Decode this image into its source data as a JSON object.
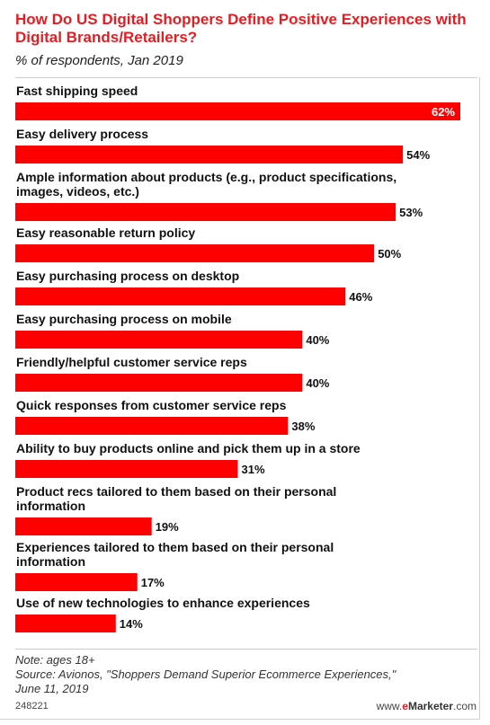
{
  "header": {
    "title": "How Do US Digital Shoppers Define Positive Experiences with Digital Brands/Retailers?",
    "subtitle": "% of respondents, Jan 2019"
  },
  "colors": {
    "bar": "#ff0000",
    "title": "#e41d23",
    "label": "#111111",
    "value_on_bar": "#ffffff"
  },
  "chart_data": {
    "type": "bar",
    "orientation": "horizontal",
    "value_suffix": "%",
    "xlim": [
      0,
      62
    ],
    "grid": false,
    "categories": [
      [
        "Fast shipping speed"
      ],
      [
        "Easy delivery process"
      ],
      [
        "Ample information about products (e.g., product specifications,",
        "images, videos, etc.)"
      ],
      [
        "Easy reasonable return policy"
      ],
      [
        "Easy purchasing process on desktop"
      ],
      [
        "Easy purchasing process on mobile"
      ],
      [
        "Friendly/helpful customer service reps"
      ],
      [
        "Quick responses from customer service reps"
      ],
      [
        "Ability to buy products online and pick them up in a store"
      ],
      [
        "Product recs tailored to them based on their personal",
        "information"
      ],
      [
        "Experiences tailored to them based on their personal",
        "information"
      ],
      [
        "Use of new technologies to enhance experiences"
      ]
    ],
    "values": [
      62,
      54,
      53,
      50,
      46,
      40,
      40,
      38,
      31,
      19,
      17,
      14
    ]
  },
  "footer": {
    "note": "Note: ages 18+",
    "source_line1": "Source: Avionos, \"Shoppers Demand Superior Ecommerce Experiences,\"",
    "source_line2": "June 11, 2019",
    "chart_id": "248221",
    "brand_prefix": "www.",
    "brand_accent": "e",
    "brand_name": "Marketer",
    "brand_suffix": ".com"
  }
}
